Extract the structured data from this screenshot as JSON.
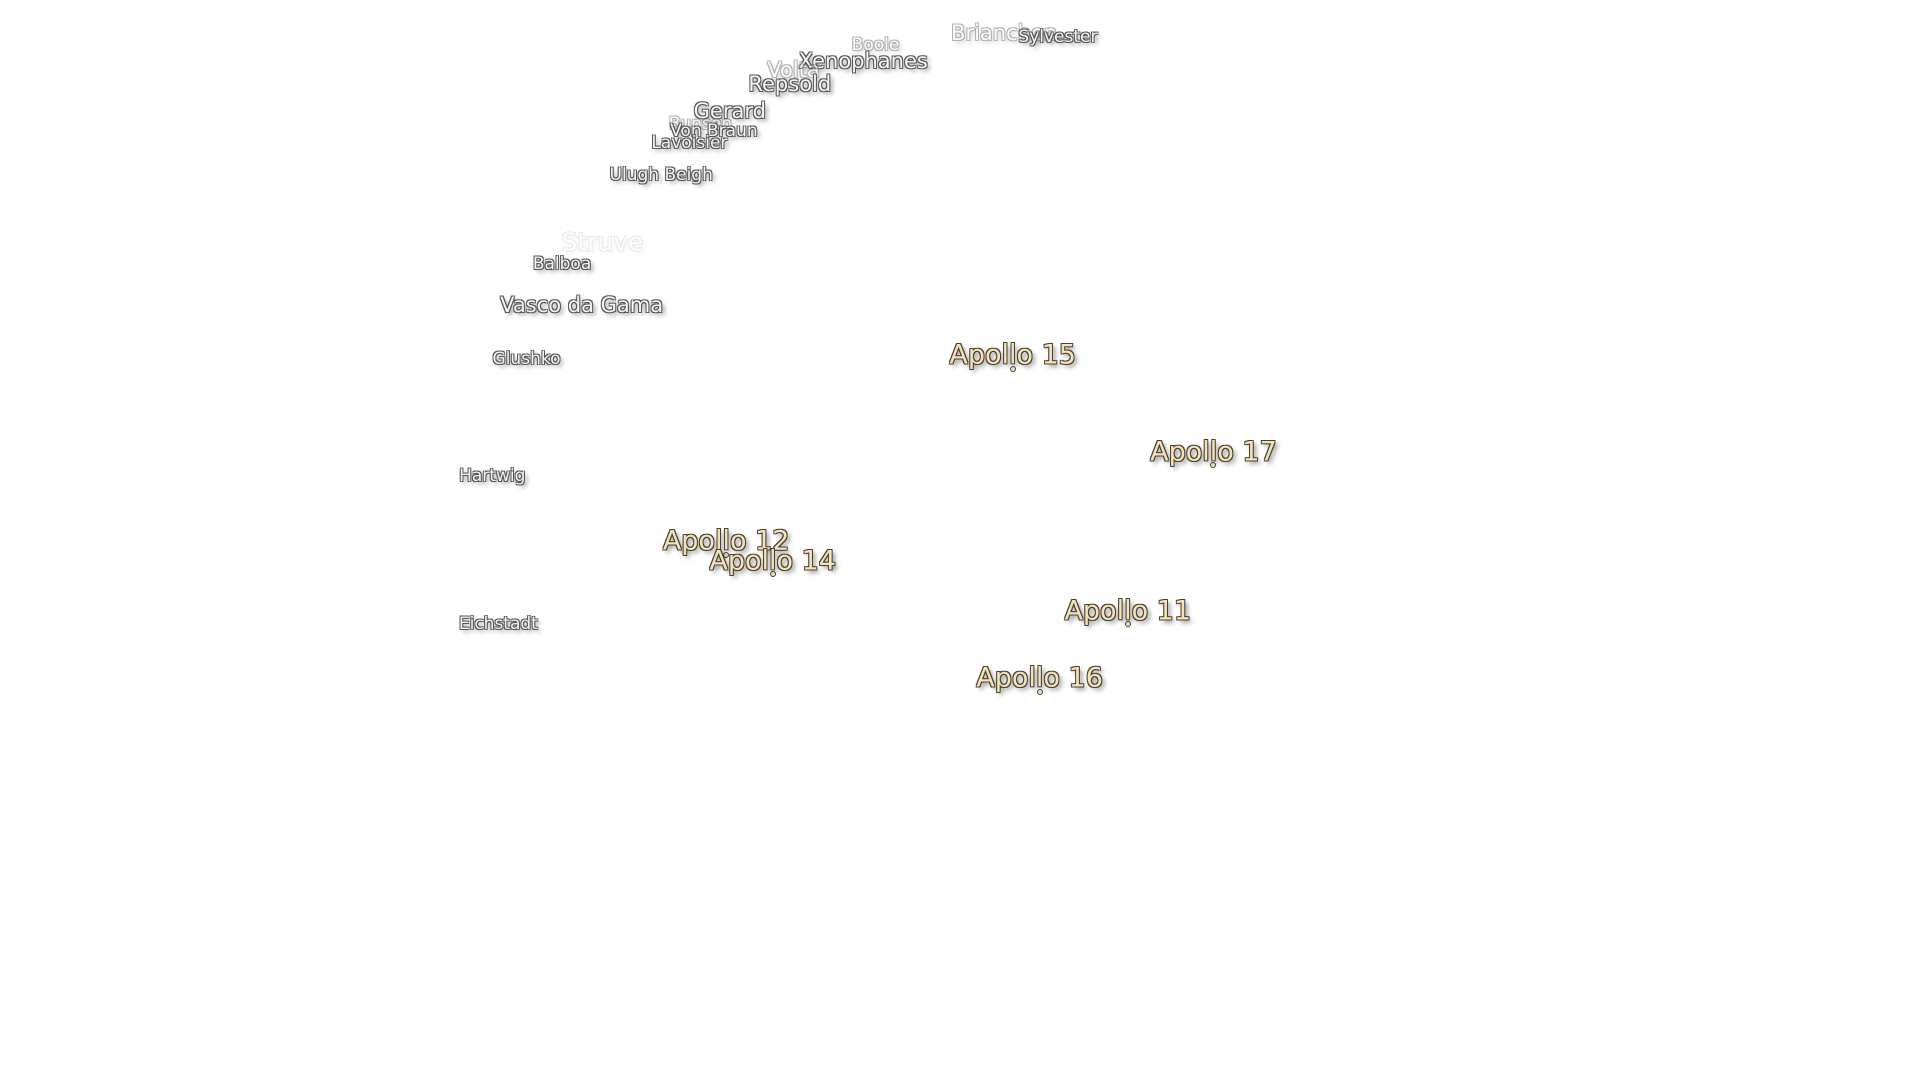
{
  "labels": {
    "craters": [
      {
        "name": "Boole"
      },
      {
        "name": "Brianchon"
      },
      {
        "name": "Sylvester"
      },
      {
        "name": "Xenophanes"
      },
      {
        "name": "Volta"
      },
      {
        "name": "Repsold"
      },
      {
        "name": "Gerard"
      },
      {
        "name": "Bunsen"
      },
      {
        "name": "Von Braun"
      },
      {
        "name": "Lavoisier"
      },
      {
        "name": "Ulugh Beigh"
      },
      {
        "name": "Struve"
      },
      {
        "name": "Balboa"
      },
      {
        "name": "Vasco da Gama"
      },
      {
        "name": "Glushko"
      },
      {
        "name": "Hartwig"
      },
      {
        "name": "Eichstadt"
      }
    ],
    "landing_sites": [
      {
        "name": "Apollo 15"
      },
      {
        "name": "Apollo 17"
      },
      {
        "name": "Apollo 12"
      },
      {
        "name": "Apollo 14"
      },
      {
        "name": "Apollo 11"
      },
      {
        "name": "Apollo 16"
      }
    ]
  }
}
